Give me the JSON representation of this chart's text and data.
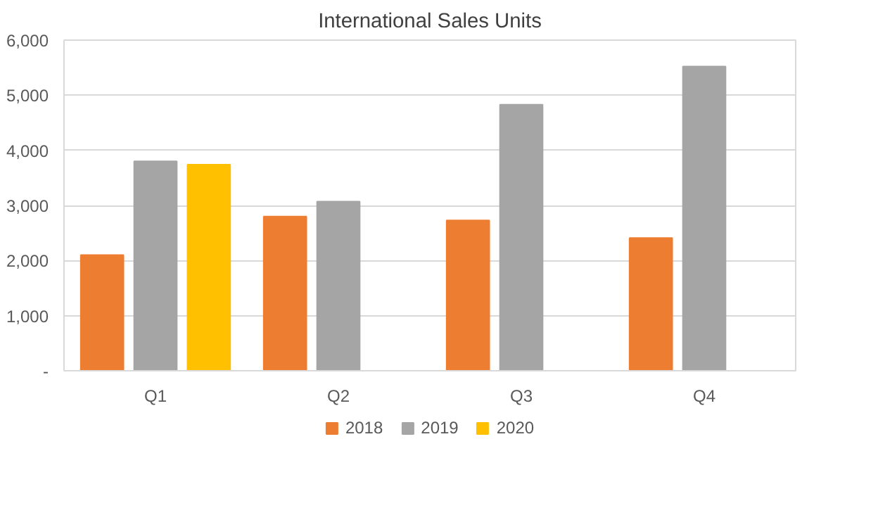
{
  "chart_data": {
    "type": "bar",
    "title": "International Sales Units",
    "categories": [
      "Q1",
      "Q2",
      "Q3",
      "Q4"
    ],
    "series": [
      {
        "name": "2018",
        "color": "#ed7d31",
        "values": [
          2100,
          2800,
          2730,
          2410
        ]
      },
      {
        "name": "2019",
        "color": "#a5a5a5",
        "values": [
          3800,
          3070,
          4830,
          5520
        ]
      },
      {
        "name": "2020",
        "color": "#ffc000",
        "values": [
          3740,
          null,
          null,
          null
        ]
      }
    ],
    "ylim": [
      0,
      6000
    ],
    "yticks": [
      {
        "value": 0,
        "label": "-"
      },
      {
        "value": 1000,
        "label": "1,000"
      },
      {
        "value": 2000,
        "label": "2,000"
      },
      {
        "value": 3000,
        "label": "3,000"
      },
      {
        "value": 4000,
        "label": "4,000"
      },
      {
        "value": 5000,
        "label": "5,000"
      },
      {
        "value": 6000,
        "label": "6,000"
      }
    ],
    "grid": "y",
    "legend": "bottom"
  }
}
